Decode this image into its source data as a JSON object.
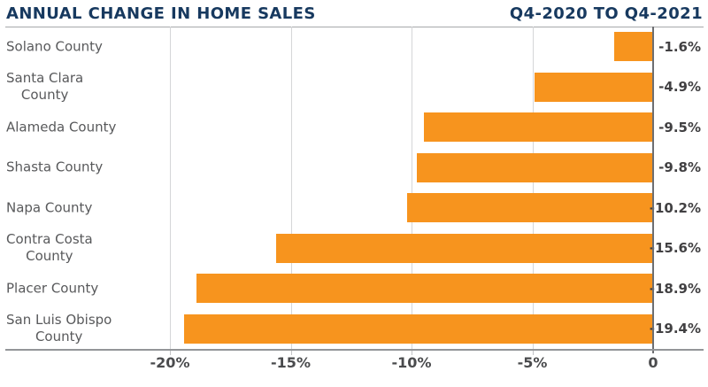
{
  "header": {
    "title": "ANNUAL CHANGE IN HOME SALES",
    "period": "Q4-2020 TO Q4-2021"
  },
  "chart_data": {
    "type": "bar",
    "orientation": "horizontal",
    "title": "ANNUAL CHANGE IN HOME SALES",
    "subtitle": "Q4-2020 TO Q4-2021",
    "xlabel": "",
    "ylabel": "",
    "xlim": [
      -20,
      0
    ],
    "grid": "vertical-gridlines-on",
    "legend": "none",
    "categories": [
      "Solano County",
      "Santa Clara County",
      "Alameda County",
      "Shasta County",
      "Napa County",
      "Contra Costa County",
      "Placer County",
      "San Luis Obispo County"
    ],
    "values": [
      -1.6,
      -4.9,
      -9.5,
      -9.8,
      -10.2,
      -15.6,
      -18.9,
      -19.4
    ],
    "rows": [
      {
        "label": "Solano County",
        "label_lines": [
          "Solano County"
        ],
        "value": -1.6,
        "value_label": "-1.6%"
      },
      {
        "label": "Santa Clara County",
        "label_lines": [
          "Santa Clara",
          "County"
        ],
        "value": -4.9,
        "value_label": "-4.9%"
      },
      {
        "label": "Alameda County",
        "label_lines": [
          "Alameda County"
        ],
        "value": -9.5,
        "value_label": "-9.5%"
      },
      {
        "label": "Shasta County",
        "label_lines": [
          "Shasta County"
        ],
        "value": -9.8,
        "value_label": "-9.8%"
      },
      {
        "label": "Napa County",
        "label_lines": [
          "Napa County"
        ],
        "value": -10.2,
        "value_label": "-10.2%"
      },
      {
        "label": "Contra Costa County",
        "label_lines": [
          "Contra Costa",
          "County"
        ],
        "value": -15.6,
        "value_label": "-15.6%"
      },
      {
        "label": "Placer County",
        "label_lines": [
          "Placer County"
        ],
        "value": -18.9,
        "value_label": "-18.9%"
      },
      {
        "label": "San Luis Obispo County",
        "label_lines": [
          "San Luis Obispo",
          "County"
        ],
        "value": -19.4,
        "value_label": "-19.4%"
      }
    ],
    "x_axis": {
      "ticks": [
        {
          "value": -20,
          "label": "-20%"
        },
        {
          "value": -15,
          "label": "-15%"
        },
        {
          "value": -10,
          "label": "-10%"
        },
        {
          "value": -5,
          "label": "-5%"
        },
        {
          "value": 0,
          "label": "0"
        }
      ]
    },
    "colors": {
      "bar": "#F7941E",
      "title": "#17395F",
      "category_text": "#58595B",
      "value_text": "#414042",
      "tick_text": "#4A4B4D",
      "gridline": "#D5D6D8",
      "tick_stub": "#C2C3C5",
      "zero_line": "#6D6E71",
      "axis_line": "#939598",
      "header_rule": "#A6A8AB",
      "background": "#FFFFFF"
    }
  }
}
